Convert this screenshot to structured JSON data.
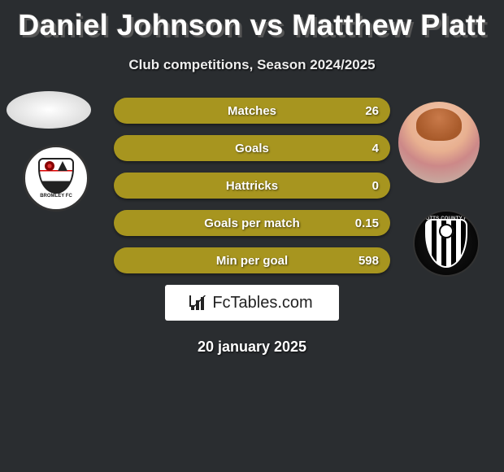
{
  "title": "Daniel Johnson vs Matthew Platt",
  "subtitle": "Club competitions, Season 2024/2025",
  "stats": [
    {
      "label": "Matches",
      "value": "26"
    },
    {
      "label": "Goals",
      "value": "4"
    },
    {
      "label": "Hattricks",
      "value": "0"
    },
    {
      "label": "Goals per match",
      "value": "0.15"
    },
    {
      "label": "Min per goal",
      "value": "598"
    }
  ],
  "stat_bar_color": "#a7951f",
  "stat_text_color": "#ffffff",
  "brand": "FcTables.com",
  "date": "20 january 2025",
  "left_club_name": "BROMLEY FC",
  "right_club_name": "NOTTS COUNTY FC",
  "colors": {
    "background": "#2a2d30",
    "title": "#ffffff",
    "subtitle": "#eeeeee",
    "brand_bg": "#ffffff",
    "brand_fg": "#222222"
  }
}
